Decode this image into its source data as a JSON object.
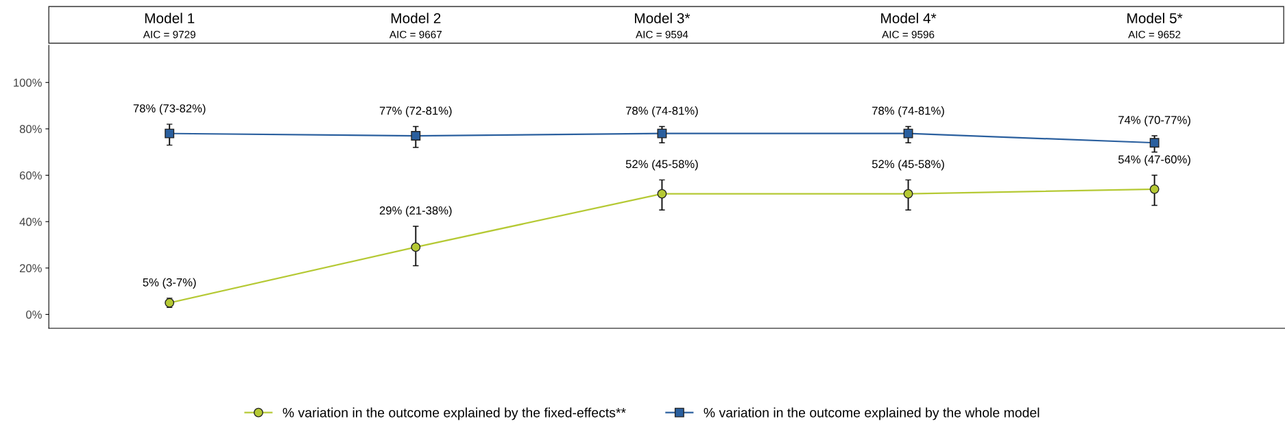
{
  "chart_data": {
    "type": "line",
    "categories": [
      "Model 1\nAIC = 9729",
      "Model 2\nAIC = 9667",
      "Model 3*\nAIC = 9594",
      "Model 4*\nAIC = 9596",
      "Model 5*\nAIC = 9652"
    ],
    "series": [
      {
        "name": "% variation in the outcome explained by the fixed-effects**",
        "color": "#b5c934",
        "marker": "circle",
        "values": [
          5,
          29,
          52,
          52,
          54
        ],
        "errors": [
          [
            3,
            7
          ],
          [
            21,
            38
          ],
          [
            45,
            58
          ],
          [
            45,
            58
          ],
          [
            47,
            60
          ]
        ],
        "value_labels": [
          "5% (3-7%)",
          "29% (21-38%)",
          "52% (45-58%)",
          "52% (45-58%)",
          "54% (47-60%)"
        ]
      },
      {
        "name": "% variation in the outcome explained by the whole model",
        "color": "#2a5f9e",
        "marker": "square",
        "values": [
          78,
          77,
          78,
          78,
          74
        ],
        "errors": [
          [
            73,
            82
          ],
          [
            72,
            81
          ],
          [
            74,
            81
          ],
          [
            74,
            81
          ],
          [
            70,
            77
          ]
        ],
        "value_labels": [
          "78% (73-82%)",
          "77% (72-81%)",
          "78% (74-81%)",
          "78% (74-81%)",
          "74% (70-77%)"
        ]
      }
    ],
    "ylim": [
      -6,
      116
    ],
    "yticks": [
      {
        "value": 0,
        "label": "0%"
      },
      {
        "value": 20,
        "label": "20%"
      },
      {
        "value": 40,
        "label": "40%"
      },
      {
        "value": 60,
        "label": "60%"
      },
      {
        "value": 80,
        "label": "80%"
      },
      {
        "value": 100,
        "label": "100%"
      }
    ],
    "grid": false,
    "legend": "bottom"
  }
}
